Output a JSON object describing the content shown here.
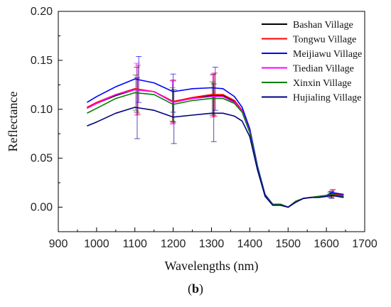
{
  "chart_data": {
    "type": "line",
    "xlabel": "Wavelengths (nm)",
    "ylabel": "Reflectance",
    "xlim": [
      900,
      1700
    ],
    "ylim": [
      -0.025,
      0.2
    ],
    "xticks": [
      "900",
      "1000",
      "1100",
      "1200",
      "1300",
      "1400",
      "1500",
      "1600",
      "1700"
    ],
    "yticks": [
      "0.00",
      "0.05",
      "0.10",
      "0.15",
      "0.20"
    ],
    "legend_position": "top-right",
    "x": [
      975,
      1000,
      1050,
      1100,
      1150,
      1200,
      1250,
      1300,
      1330,
      1360,
      1380,
      1400,
      1420,
      1440,
      1460,
      1480,
      1500,
      1520,
      1540,
      1560,
      1580,
      1600,
      1615,
      1630,
      1645
    ],
    "series": [
      {
        "name": "Bashan Village",
        "color": "#000000",
        "values": [
          0.101,
          0.106,
          0.114,
          0.12,
          0.118,
          0.108,
          0.111,
          0.114,
          0.114,
          0.108,
          0.098,
          0.077,
          0.04,
          0.012,
          0.003,
          0.003,
          0.0,
          0.006,
          0.009,
          0.01,
          0.011,
          0.012,
          0.013,
          0.012,
          0.011
        ]
      },
      {
        "name": "Tongwu Village",
        "color": "#ff0000",
        "values": [
          0.102,
          0.107,
          0.115,
          0.121,
          0.118,
          0.108,
          0.112,
          0.115,
          0.115,
          0.109,
          0.099,
          0.078,
          0.041,
          0.012,
          0.003,
          0.003,
          0.0,
          0.006,
          0.009,
          0.01,
          0.011,
          0.012,
          0.014,
          0.013,
          0.012
        ]
      },
      {
        "name": "Meijiawu Village",
        "color": "#0000ff",
        "values": [
          0.107,
          0.113,
          0.123,
          0.131,
          0.127,
          0.118,
          0.121,
          0.122,
          0.121,
          0.113,
          0.102,
          0.08,
          0.042,
          0.013,
          0.003,
          0.003,
          0.0,
          0.006,
          0.009,
          0.01,
          0.011,
          0.012,
          0.015,
          0.014,
          0.013
        ]
      },
      {
        "name": "Tiedian Village",
        "color": "#ff00ff",
        "values": [
          0.101,
          0.106,
          0.115,
          0.12,
          0.118,
          0.107,
          0.111,
          0.113,
          0.113,
          0.107,
          0.098,
          0.077,
          0.04,
          0.012,
          0.003,
          0.003,
          0.0,
          0.006,
          0.009,
          0.01,
          0.011,
          0.012,
          0.013,
          0.012,
          0.011
        ]
      },
      {
        "name": "Xinxin Village",
        "color": "#008000",
        "values": [
          0.096,
          0.101,
          0.111,
          0.117,
          0.115,
          0.105,
          0.109,
          0.111,
          0.111,
          0.106,
          0.097,
          0.076,
          0.04,
          0.012,
          0.003,
          0.003,
          0.0,
          0.006,
          0.009,
          0.01,
          0.011,
          0.012,
          0.013,
          0.012,
          0.011
        ]
      },
      {
        "name": "Hujialing Village",
        "color": "#000080",
        "values": [
          0.083,
          0.087,
          0.096,
          0.102,
          0.099,
          0.092,
          0.094,
          0.096,
          0.096,
          0.093,
          0.088,
          0.072,
          0.038,
          0.011,
          0.002,
          0.002,
          0.0,
          0.005,
          0.009,
          0.01,
          0.01,
          0.011,
          0.012,
          0.011,
          0.01
        ]
      }
    ],
    "error_bars": [
      {
        "series": 0,
        "x": 1105,
        "low": 0.097,
        "high": 0.143
      },
      {
        "series": 0,
        "x": 1200,
        "low": 0.087,
        "high": 0.129
      },
      {
        "series": 0,
        "x": 1305,
        "low": 0.094,
        "high": 0.136
      },
      {
        "series": 0,
        "x": 1613,
        "low": 0.01,
        "high": 0.016
      },
      {
        "series": 1,
        "x": 1108,
        "low": 0.095,
        "high": 0.145
      },
      {
        "series": 1,
        "x": 1200,
        "low": 0.086,
        "high": 0.13
      },
      {
        "series": 1,
        "x": 1308,
        "low": 0.093,
        "high": 0.137
      },
      {
        "series": 1,
        "x": 1615,
        "low": 0.011,
        "high": 0.017
      },
      {
        "series": 2,
        "x": 1110,
        "low": 0.107,
        "high": 0.154
      },
      {
        "series": 2,
        "x": 1200,
        "low": 0.097,
        "high": 0.136
      },
      {
        "series": 2,
        "x": 1310,
        "low": 0.099,
        "high": 0.143
      },
      {
        "series": 2,
        "x": 1617,
        "low": 0.012,
        "high": 0.018
      },
      {
        "series": 3,
        "x": 1105,
        "low": 0.094,
        "high": 0.147
      },
      {
        "series": 3,
        "x": 1198,
        "low": 0.085,
        "high": 0.129
      },
      {
        "series": 3,
        "x": 1303,
        "low": 0.092,
        "high": 0.135
      },
      {
        "series": 3,
        "x": 1611,
        "low": 0.01,
        "high": 0.016
      },
      {
        "series": 4,
        "x": 1102,
        "low": 0.099,
        "high": 0.135
      },
      {
        "series": 4,
        "x": 1198,
        "low": 0.088,
        "high": 0.122
      },
      {
        "series": 4,
        "x": 1302,
        "low": 0.094,
        "high": 0.128
      },
      {
        "series": 4,
        "x": 1610,
        "low": 0.01,
        "high": 0.015
      },
      {
        "series": 5,
        "x": 1106,
        "low": 0.07,
        "high": 0.132
      },
      {
        "series": 5,
        "x": 1202,
        "low": 0.065,
        "high": 0.12
      },
      {
        "series": 5,
        "x": 1306,
        "low": 0.067,
        "high": 0.126
      },
      {
        "series": 5,
        "x": 1614,
        "low": 0.009,
        "high": 0.015
      }
    ]
  },
  "caption": {
    "open": "(",
    "letter": "b",
    "close": ")"
  }
}
